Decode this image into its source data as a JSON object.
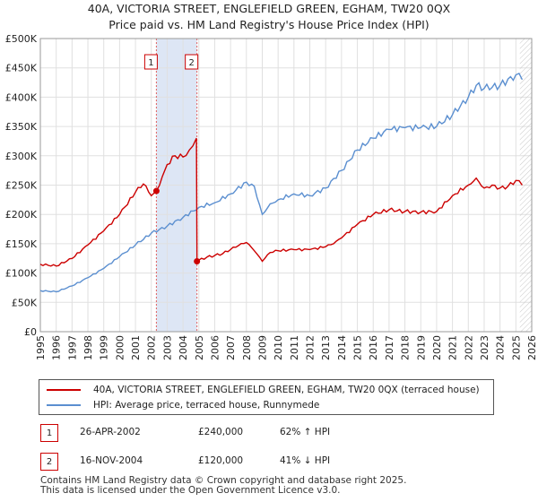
{
  "title_line1": "40A, VICTORIA STREET, ENGLEFIELD GREEN, EGHAM, TW20 0QX",
  "title_line2": "Price paid vs. HM Land Registry's House Price Index (HPI)",
  "colors": {
    "property": "#cc0000",
    "hpi": "#5b8fd0",
    "shade": "#dde6f5",
    "grid": "#e0e0e0"
  },
  "legend": {
    "property_label": "40A, VICTORIA STREET, ENGLEFIELD GREEN, EGHAM, TW20 0QX (terraced house)",
    "hpi_label": "HPI: Average price, terraced house, Runnymede"
  },
  "sales": [
    {
      "id": "1",
      "date": "26-APR-2002",
      "price": "£240,000",
      "hpi_change": "62% ↑ HPI"
    },
    {
      "id": "2",
      "date": "16-NOV-2004",
      "price": "£120,000",
      "hpi_change": "41% ↓ HPI"
    }
  ],
  "footer": {
    "line1": "Contains HM Land Registry data © Crown copyright and database right 2025.",
    "line2": "This data is licensed under the Open Government Licence v3.0."
  },
  "chart_data": {
    "type": "line",
    "ylim": [
      0,
      500000
    ],
    "xlim": [
      1995,
      2026
    ],
    "y_ticks": [
      0,
      50000,
      100000,
      150000,
      200000,
      250000,
      300000,
      350000,
      400000,
      450000,
      500000
    ],
    "y_tick_labels": [
      "£0",
      "£50K",
      "£100K",
      "£150K",
      "£200K",
      "£250K",
      "£300K",
      "£350K",
      "£400K",
      "£450K",
      "£500K"
    ],
    "x_tick_labels": [
      "1995",
      "1996",
      "1997",
      "1998",
      "1999",
      "2000",
      "2001",
      "2002",
      "2003",
      "2004",
      "2005",
      "2006",
      "2007",
      "2008",
      "2009",
      "2010",
      "2011",
      "2012",
      "2013",
      "2014",
      "2015",
      "2016",
      "2017",
      "2018",
      "2019",
      "2020",
      "2021",
      "2022",
      "2023",
      "2024",
      "2025",
      "2026"
    ],
    "shaded_range": [
      2002.32,
      2004.88
    ],
    "future_from": 2025.25,
    "markers": [
      {
        "label": "1",
        "x": 2002.32,
        "y": 240000
      },
      {
        "label": "2",
        "x": 2004.88,
        "y": 120000
      }
    ],
    "series": [
      {
        "name": "40A, VICTORIA STREET, ENGLEFIELD GREEN, EGHAM, TW20 0QX (terraced house)",
        "x": [
          1995,
          1996,
          1997,
          1998,
          1999,
          2000,
          2001,
          2001.5,
          2002,
          2002.32,
          2002.7,
          2003,
          2003.5,
          2004,
          2004.4,
          2004.85,
          2004.88,
          2005,
          2005.5,
          2006,
          2006.5,
          2007,
          2007.5,
          2008,
          2008.5,
          2009,
          2009.5,
          2010,
          2011,
          2012,
          2013,
          2013.5,
          2014,
          2015,
          2016,
          2017,
          2018,
          2019,
          2020,
          2021,
          2022,
          2022.5,
          2023,
          2023.5,
          2024,
          2024.5,
          2025,
          2025.4
        ],
        "y": [
          115000,
          112000,
          125000,
          148000,
          172000,
          200000,
          238000,
          252000,
          232000,
          240000,
          265000,
          285000,
          300000,
          298000,
          310000,
          330000,
          120000,
          122000,
          127000,
          130000,
          133000,
          140000,
          147000,
          152000,
          138000,
          120000,
          135000,
          138000,
          140000,
          140000,
          145000,
          150000,
          160000,
          183000,
          200000,
          208000,
          205000,
          204000,
          205000,
          232000,
          250000,
          262000,
          245000,
          250000,
          245000,
          248000,
          258000,
          250000
        ]
      },
      {
        "name": "HPI: Average price, terraced house, Runnymede",
        "x": [
          1995,
          1996,
          1997,
          1998,
          1999,
          2000,
          2001,
          2002,
          2003,
          2004,
          2005,
          2006,
          2007,
          2008,
          2008.5,
          2009,
          2009.5,
          2010,
          2011,
          2012,
          2013,
          2014,
          2015,
          2016,
          2017,
          2018,
          2019,
          2020,
          2021,
          2022,
          2022.5,
          2023,
          2024,
          2025,
          2025.4
        ],
        "y": [
          70000,
          68000,
          78000,
          92000,
          108000,
          128000,
          148000,
          168000,
          180000,
          195000,
          212000,
          220000,
          235000,
          255000,
          248000,
          200000,
          218000,
          225000,
          235000,
          232000,
          245000,
          275000,
          310000,
          330000,
          345000,
          348000,
          348000,
          350000,
          370000,
          400000,
          420000,
          415000,
          420000,
          438000,
          430000
        ]
      }
    ]
  }
}
